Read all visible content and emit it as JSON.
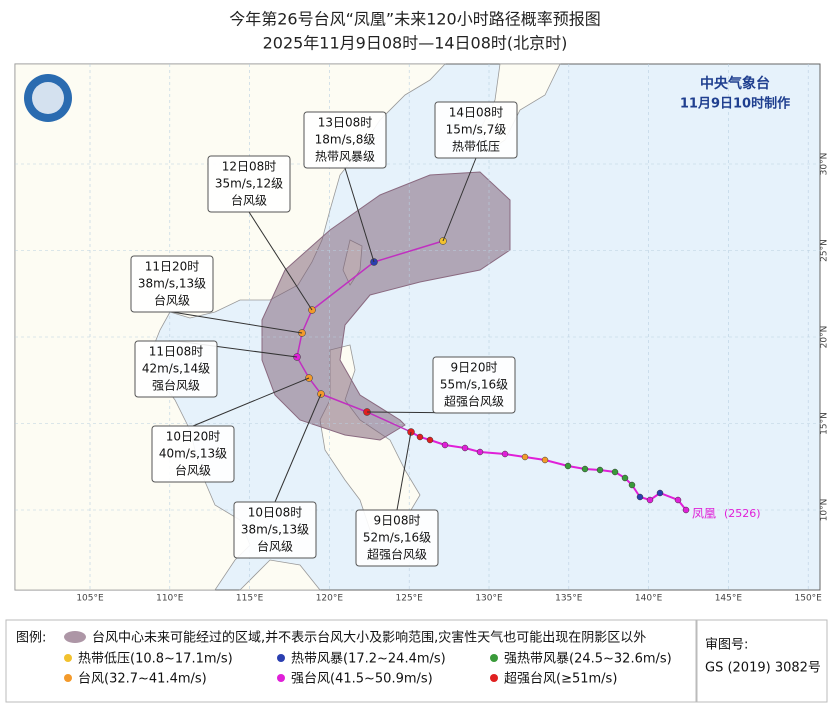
{
  "header": {
    "title": "今年第26号台风“凤凰”未来120小时路径概率预报图",
    "subtitle": "2025年11月9日08时—14日08时(北京时)"
  },
  "agency": {
    "name": "中央气象台",
    "time": "11月9日10时制作"
  },
  "typhoon_label": {
    "name": "凤凰",
    "code": "(2526)"
  },
  "callouts": [
    {
      "time": "14日08时",
      "wind": "15m/s,7级",
      "level": "热带低压"
    },
    {
      "time": "13日08时",
      "wind": "18m/s,8级",
      "level": "热带风暴级"
    },
    {
      "time": "12日08时",
      "wind": "35m/s,12级",
      "level": "台风级"
    },
    {
      "time": "11日20时",
      "wind": "38m/s,13级",
      "level": "台风级"
    },
    {
      "time": "11日08时",
      "wind": "42m/s,14级",
      "level": "强台风级"
    },
    {
      "time": "10日20时",
      "wind": "40m/s,13级",
      "level": "台风级"
    },
    {
      "time": "10日08时",
      "wind": "38m/s,13级",
      "level": "台风级"
    },
    {
      "time": "9日20时",
      "wind": "55m/s,16级",
      "level": "超强台风级"
    },
    {
      "time": "9日08时",
      "wind": "52m/s,16级",
      "level": "超强台风级"
    }
  ],
  "axes": {
    "lon_labels": [
      "105°E",
      "110°E",
      "115°E",
      "120°E",
      "125°E",
      "130°E",
      "135°E",
      "140°E",
      "145°E",
      "150°E"
    ],
    "lat_labels": [
      "10°N",
      "15°N",
      "20°N",
      "25°N",
      "30°N"
    ]
  },
  "legend": {
    "title": "图例:",
    "area": "台风中心未来可能经过的区域,并不表示台风大小及影响范围,灾害性天气也可能出现在阴影区以外",
    "items": [
      {
        "label": "热带低压(10.8~17.1m/s)",
        "color": "#f2c12e"
      },
      {
        "label": "热带风暴(17.2~24.4m/s)",
        "color": "#2b3fb0"
      },
      {
        "label": "强热带风暴(24.5~32.6m/s)",
        "color": "#3a9a3a"
      },
      {
        "label": "台风(32.7~41.4m/s)",
        "color": "#f39a2b"
      },
      {
        "label": "强台风(41.5~50.9m/s)",
        "color": "#e020d8"
      },
      {
        "label": "超强台风(≥51m/s)",
        "color": "#e02020"
      }
    ]
  },
  "approval": {
    "label": "审图号:",
    "number": "GS (2019) 3082号"
  }
}
